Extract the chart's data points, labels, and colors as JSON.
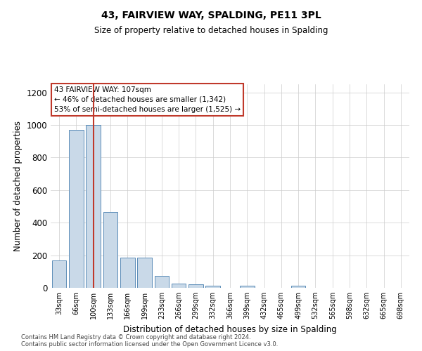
{
  "title": "43, FAIRVIEW WAY, SPALDING, PE11 3PL",
  "subtitle": "Size of property relative to detached houses in Spalding",
  "xlabel": "Distribution of detached houses by size in Spalding",
  "ylabel": "Number of detached properties",
  "bar_labels": [
    "33sqm",
    "66sqm",
    "100sqm",
    "133sqm",
    "166sqm",
    "199sqm",
    "233sqm",
    "266sqm",
    "299sqm",
    "332sqm",
    "366sqm",
    "399sqm",
    "432sqm",
    "465sqm",
    "499sqm",
    "532sqm",
    "565sqm",
    "598sqm",
    "632sqm",
    "665sqm",
    "698sqm"
  ],
  "bar_values": [
    170,
    970,
    1000,
    465,
    185,
    185,
    75,
    25,
    20,
    15,
    0,
    15,
    0,
    0,
    15,
    0,
    0,
    0,
    0,
    0,
    0
  ],
  "bar_color": "#c9d9e8",
  "bar_edge_color": "#5b8db8",
  "ylim": [
    0,
    1250
  ],
  "yticks": [
    0,
    200,
    400,
    600,
    800,
    1000,
    1200
  ],
  "vline_x": 2,
  "vline_color": "#c0392b",
  "annotation_title": "43 FAIRVIEW WAY: 107sqm",
  "annotation_line1": "← 46% of detached houses are smaller (1,342)",
  "annotation_line2": "53% of semi-detached houses are larger (1,525) →",
  "annotation_box_color": "#c0392b",
  "footer_line1": "Contains HM Land Registry data © Crown copyright and database right 2024.",
  "footer_line2": "Contains public sector information licensed under the Open Government Licence v3.0.",
  "background_color": "#ffffff",
  "grid_color": "#cccccc"
}
